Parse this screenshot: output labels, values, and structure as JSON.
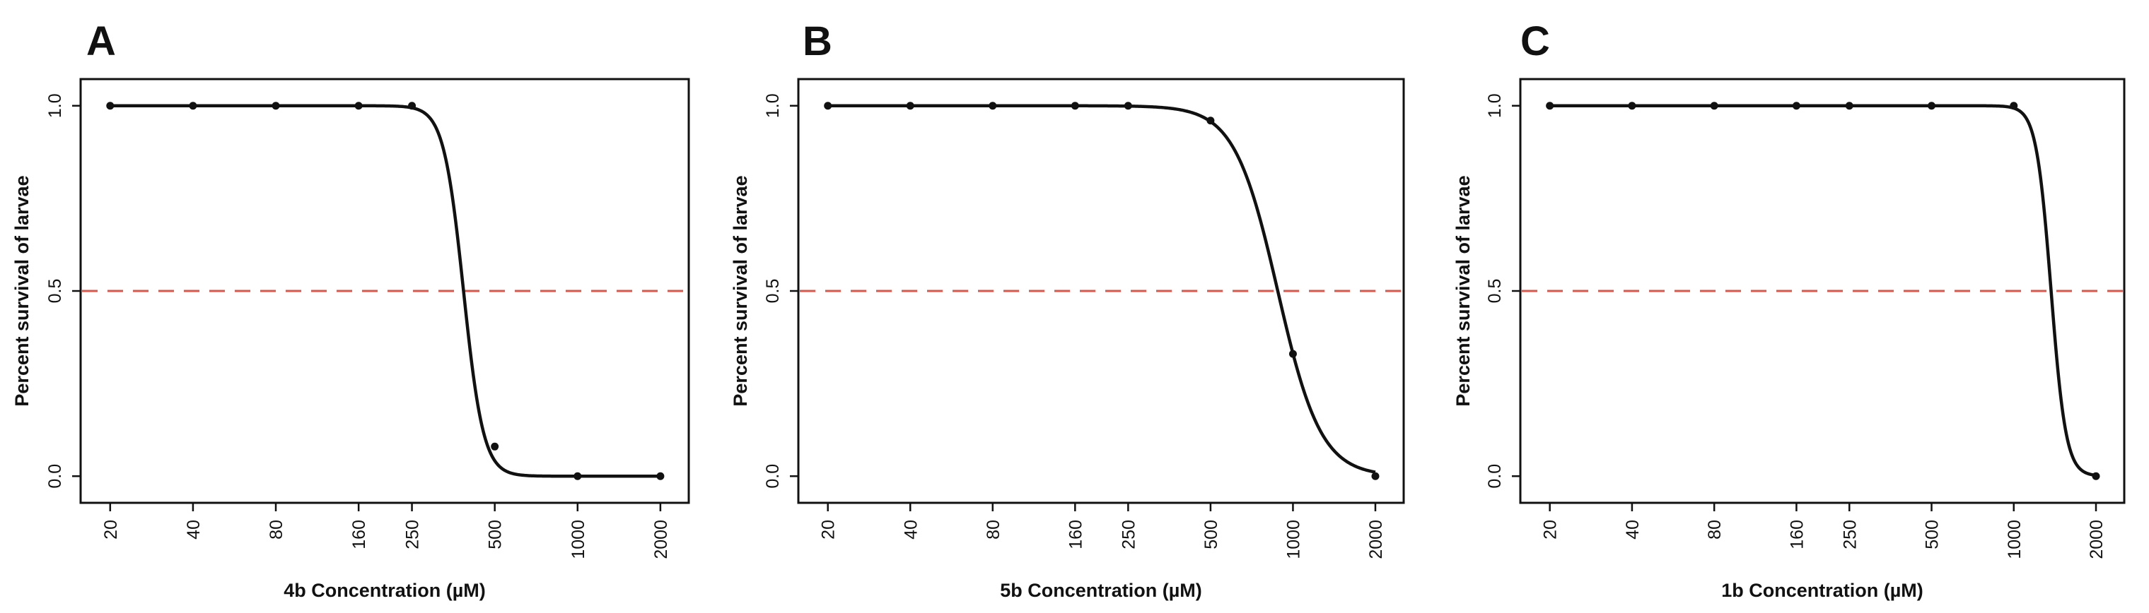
{
  "figure": {
    "panels": [
      {
        "letter": "A",
        "xlabel": "4b Concentration (µM)",
        "ylabel": "Percent survival of larvae"
      },
      {
        "letter": "B",
        "xlabel": "5b Concentration (µM)",
        "ylabel": "Percent survival of larvae"
      },
      {
        "letter": "C",
        "xlabel": "1b Concentration (µM)",
        "ylabel": "Percent survival of larvae"
      }
    ]
  },
  "colors": {
    "curve": "#111111",
    "reference_line": "#d9574a"
  },
  "chart_data": [
    {
      "type": "line",
      "panel": "A",
      "title": "",
      "xlabel": "4b Concentration (µM)",
      "ylabel": "Percent survival of larvae",
      "x_scale": "log",
      "x_ticks": [
        20,
        40,
        80,
        160,
        250,
        500,
        1000,
        2000
      ],
      "x_tick_labels": [
        "20",
        "40",
        "80",
        "160",
        "250",
        "500",
        "1000",
        "2000"
      ],
      "y_ticks": [
        0.0,
        0.5,
        1.0
      ],
      "y_tick_labels": [
        "0.0",
        "0.5",
        "1.0"
      ],
      "xlim": [
        18,
        2200
      ],
      "ylim": [
        -0.03,
        1.03
      ],
      "points": {
        "x": [
          20,
          40,
          80,
          160,
          250,
          500,
          1000,
          2000
        ],
        "y": [
          1.0,
          1.0,
          1.0,
          1.0,
          1.0,
          0.08,
          0.0,
          0.0
        ]
      },
      "fit": {
        "model": "log-logistic",
        "ec50": 385,
        "hill": 12
      },
      "reference_line": {
        "y": 0.5,
        "style": "dashed"
      },
      "grid": false
    },
    {
      "type": "line",
      "panel": "B",
      "title": "",
      "xlabel": "5b Concentration (µM)",
      "ylabel": "Percent survival of larvae",
      "x_scale": "log",
      "x_ticks": [
        20,
        40,
        80,
        160,
        250,
        500,
        1000,
        2000
      ],
      "x_tick_labels": [
        "20",
        "40",
        "80",
        "160",
        "250",
        "500",
        "1000",
        "2000"
      ],
      "y_ticks": [
        0.0,
        0.5,
        1.0
      ],
      "y_tick_labels": [
        "0.0",
        "0.5",
        "1.0"
      ],
      "xlim": [
        18,
        2200
      ],
      "ylim": [
        -0.03,
        1.03
      ],
      "points": {
        "x": [
          20,
          40,
          80,
          160,
          250,
          500,
          1000,
          2000
        ],
        "y": [
          1.0,
          1.0,
          1.0,
          1.0,
          1.0,
          0.96,
          0.33,
          0.0
        ]
      },
      "fit": {
        "model": "log-logistic",
        "ec50": 880,
        "hill": 5.5
      },
      "reference_line": {
        "y": 0.5,
        "style": "dashed"
      },
      "grid": false
    },
    {
      "type": "line",
      "panel": "C",
      "title": "",
      "xlabel": "1b Concentration (µM)",
      "ylabel": "Percent survival of larvae",
      "x_scale": "log",
      "x_ticks": [
        20,
        40,
        80,
        160,
        250,
        500,
        1000,
        2000
      ],
      "x_tick_labels": [
        "20",
        "40",
        "80",
        "160",
        "250",
        "500",
        "1000",
        "2000"
      ],
      "y_ticks": [
        0.0,
        0.5,
        1.0
      ],
      "y_tick_labels": [
        "0.0",
        "0.5",
        "1.0"
      ],
      "xlim": [
        18,
        2200
      ],
      "ylim": [
        -0.03,
        1.03
      ],
      "points": {
        "x": [
          20,
          40,
          80,
          160,
          250,
          500,
          1000,
          2000
        ],
        "y": [
          1.0,
          1.0,
          1.0,
          1.0,
          1.0,
          1.0,
          1.0,
          0.0
        ]
      },
      "fit": {
        "model": "log-logistic",
        "ec50": 1370,
        "hill": 16
      },
      "reference_line": {
        "y": 0.5,
        "style": "dashed"
      },
      "grid": false
    }
  ]
}
